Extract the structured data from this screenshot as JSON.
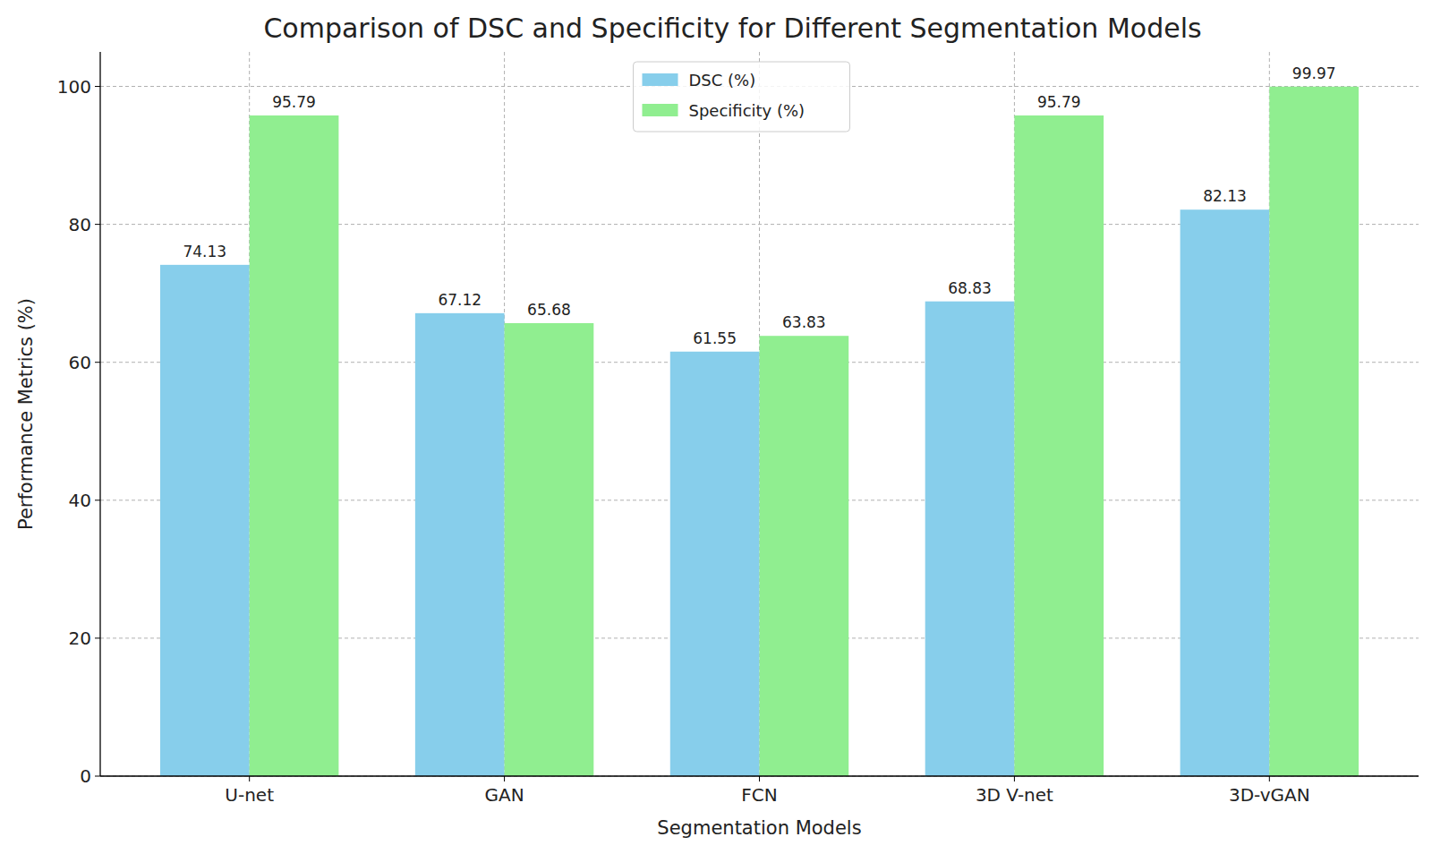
{
  "chart_data": {
    "type": "bar",
    "title": "Comparison of DSC and Specificity for Different Segmentation Models",
    "x_label": "Segmentation Models",
    "y_label": "Performance Metrics (%)",
    "categories": [
      "U-net",
      "GAN",
      "FCN",
      "3D V-net",
      "3D-vGAN"
    ],
    "series": [
      {
        "name": "DSC (%)",
        "color": "#87ceeb",
        "values": [
          74.13,
          67.12,
          61.55,
          68.83,
          82.13
        ]
      },
      {
        "name": "Specificity (%)",
        "color": "#90ee90",
        "values": [
          95.79,
          65.68,
          63.83,
          95.79,
          99.97
        ]
      }
    ],
    "ylim": [
      0,
      105
    ],
    "yticks": [
      0,
      20,
      40,
      60,
      80,
      100
    ],
    "grid": true,
    "legend": "upper center",
    "data_labels": true
  }
}
